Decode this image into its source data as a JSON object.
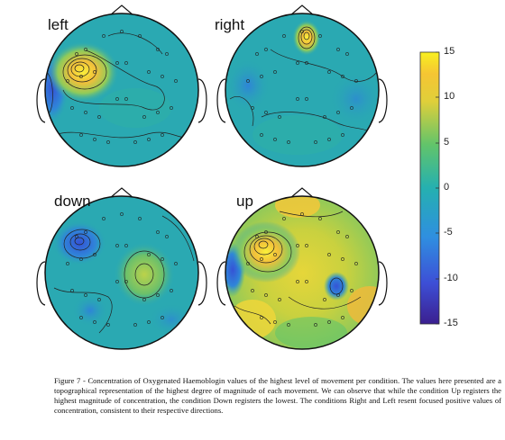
{
  "panels": [
    {
      "label": "left"
    },
    {
      "label": "right"
    },
    {
      "label": "down"
    },
    {
      "label": "up"
    }
  ],
  "colorbar": {
    "ticks": [
      "15",
      "10",
      "5",
      "0",
      "-5",
      "-10",
      "-15"
    ]
  },
  "caption": "Figure 7 - Concentration of Oxygenated Haemoblogin values of the highest level of movement per condition. The values here presented are a topographical representation of the highest degree of magnitude of each movement. We can observe that while the condition Up registers the highest magnitude of concentration, the condition Down registers the lowest. The conditions Right and Left resent focused positive values of concentration, consistent to their respective directions.",
  "colors": {
    "base": "#2aa9b2",
    "positive": "#f5e22f",
    "peak": "#f7a43a",
    "negative": "#3d5bd8"
  }
}
